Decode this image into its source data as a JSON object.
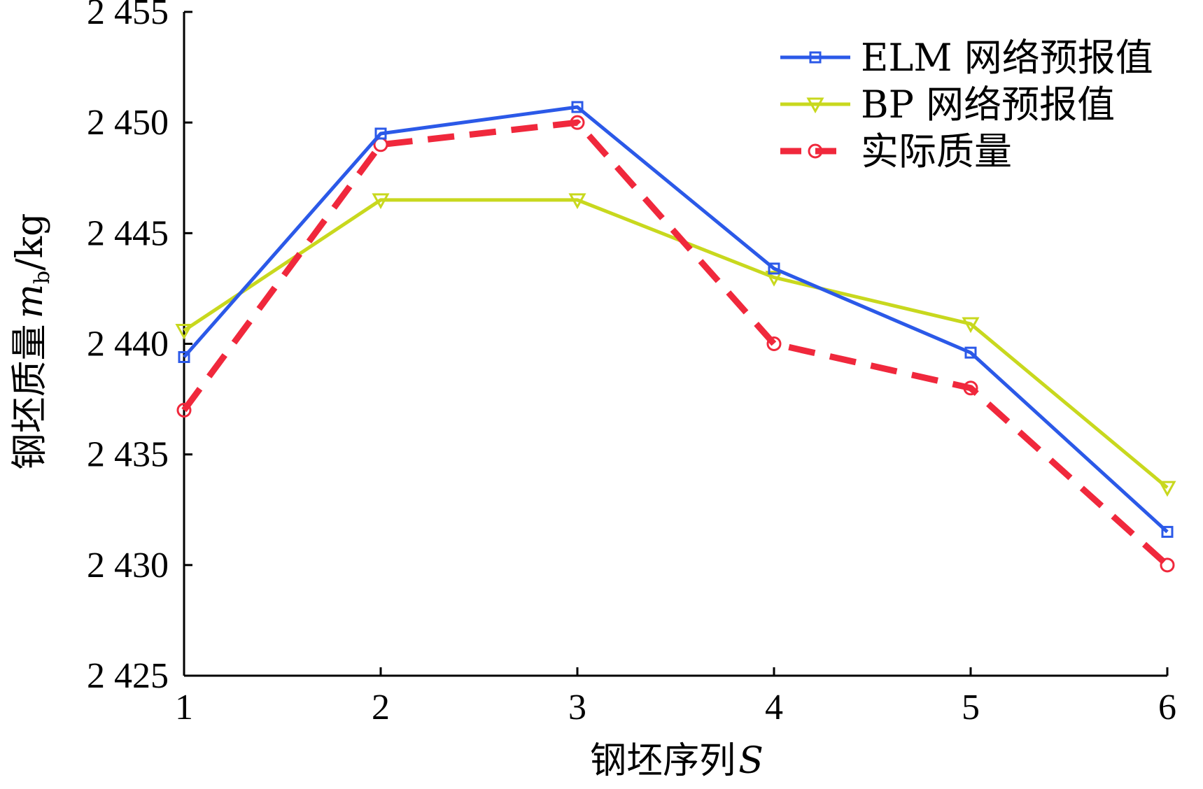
{
  "chart_data": {
    "type": "line",
    "x": [
      1,
      2,
      3,
      4,
      5,
      6
    ],
    "xlim": [
      1,
      6
    ],
    "ylim": [
      2425,
      2455
    ],
    "x_ticks": [
      "1",
      "2",
      "3",
      "4",
      "5",
      "6"
    ],
    "y_ticks": [
      "2 425",
      "2 430",
      "2 435",
      "2 440",
      "2 445",
      "2 450",
      "2 455"
    ],
    "y_tick_values": [
      2425,
      2430,
      2435,
      2440,
      2445,
      2450,
      2455
    ],
    "xlabel_text": "钢坯序列",
    "xlabel_symbol": "S",
    "ylabel_text": "钢坯质量",
    "ylabel_symbol": "m",
    "ylabel_subscript": "b",
    "ylabel_unit": "/kg",
    "grid": false,
    "legend_position": "top-right",
    "series": [
      {
        "name": "ELM 网络预报值",
        "values": [
          2439.4,
          2449.5,
          2450.7,
          2443.4,
          2439.6,
          2431.5
        ],
        "color": "#2b59e8",
        "marker": "square",
        "line_style": "solid"
      },
      {
        "name": "BP 网络预报值",
        "values": [
          2440.6,
          2446.5,
          2446.5,
          2443.0,
          2440.9,
          2433.5
        ],
        "color": "#c8d81e",
        "marker": "triangle-down",
        "line_style": "solid"
      },
      {
        "name": "实际质量",
        "values": [
          2437.0,
          2449.0,
          2450.0,
          2440.0,
          2438.0,
          2430.0
        ],
        "color": "#f0283c",
        "marker": "circle",
        "line_style": "dashed"
      }
    ]
  }
}
